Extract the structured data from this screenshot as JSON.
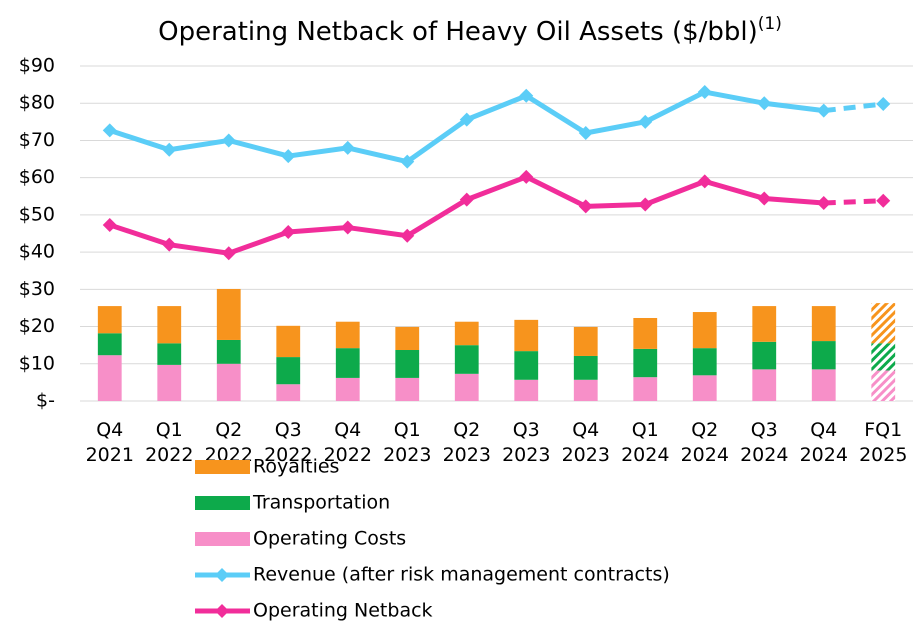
{
  "chart_data": {
    "type": "stacked_bar_line",
    "title": "Operating Netback of Heavy Oil Assets ($/bbl)",
    "title_superscript": "(1)",
    "categories": [
      [
        "Q4",
        "2021"
      ],
      [
        "Q1",
        "2022"
      ],
      [
        "Q2",
        "2022"
      ],
      [
        "Q3",
        "2022"
      ],
      [
        "Q4",
        "2022"
      ],
      [
        "Q1",
        "2023"
      ],
      [
        "Q2",
        "2023"
      ],
      [
        "Q3",
        "2023"
      ],
      [
        "Q4",
        "2023"
      ],
      [
        "Q1",
        "2024"
      ],
      [
        "Q2",
        "2024"
      ],
      [
        "Q3",
        "2024"
      ],
      [
        "Q4",
        "2024"
      ],
      [
        "FQ1",
        "2025"
      ]
    ],
    "forecast_index": 13,
    "ylim": [
      0,
      90
    ],
    "yticks": [
      {
        "value": 0,
        "label": "$-"
      },
      {
        "value": 10,
        "label": "$10"
      },
      {
        "value": 20,
        "label": "$20"
      },
      {
        "value": 30,
        "label": "$30"
      },
      {
        "value": 40,
        "label": "$40"
      },
      {
        "value": 50,
        "label": "$50"
      },
      {
        "value": 60,
        "label": "$60"
      },
      {
        "value": 70,
        "label": "$70"
      },
      {
        "value": 80,
        "label": "$80"
      },
      {
        "value": 90,
        "label": "$90"
      }
    ],
    "grid": true,
    "series": [
      {
        "name": "Operating Costs",
        "kind": "bar",
        "color": "#f78fc8",
        "values": [
          12.3,
          9.7,
          10,
          4.5,
          6.2,
          6.2,
          7.3,
          5.7,
          5.7,
          6.4,
          6.9,
          8.5,
          8.5,
          8.2
        ]
      },
      {
        "name": "Transportation",
        "kind": "bar",
        "color": "#0daa4b",
        "values": [
          5.9,
          5.8,
          6.4,
          7.3,
          8,
          7.5,
          7.7,
          7.7,
          6.4,
          7.6,
          7.3,
          7.4,
          7.6,
          7.3
        ]
      },
      {
        "name": "Royalties",
        "kind": "bar",
        "color": "#f7941d",
        "values": [
          7.3,
          10,
          13.7,
          8.4,
          7.1,
          6.2,
          6.3,
          8.4,
          7.8,
          8.3,
          9.7,
          9.6,
          9.4,
          10.8
        ]
      },
      {
        "name": "Revenue (after risk management contracts)",
        "kind": "line",
        "color": "#5bcdf7",
        "values": [
          72.7,
          67.5,
          70,
          65.8,
          68,
          64.3,
          75.6,
          82,
          72,
          75,
          83,
          80,
          78,
          79.8
        ]
      },
      {
        "name": "Operating Netback",
        "kind": "line",
        "color": "#f12d9a",
        "values": [
          47.3,
          42,
          39.7,
          45.4,
          46.6,
          44.4,
          54.1,
          60.2,
          52.3,
          52.8,
          59,
          54.4,
          53.2,
          53.8
        ]
      }
    ],
    "legend_order": [
      2,
      1,
      0,
      3,
      4
    ]
  }
}
